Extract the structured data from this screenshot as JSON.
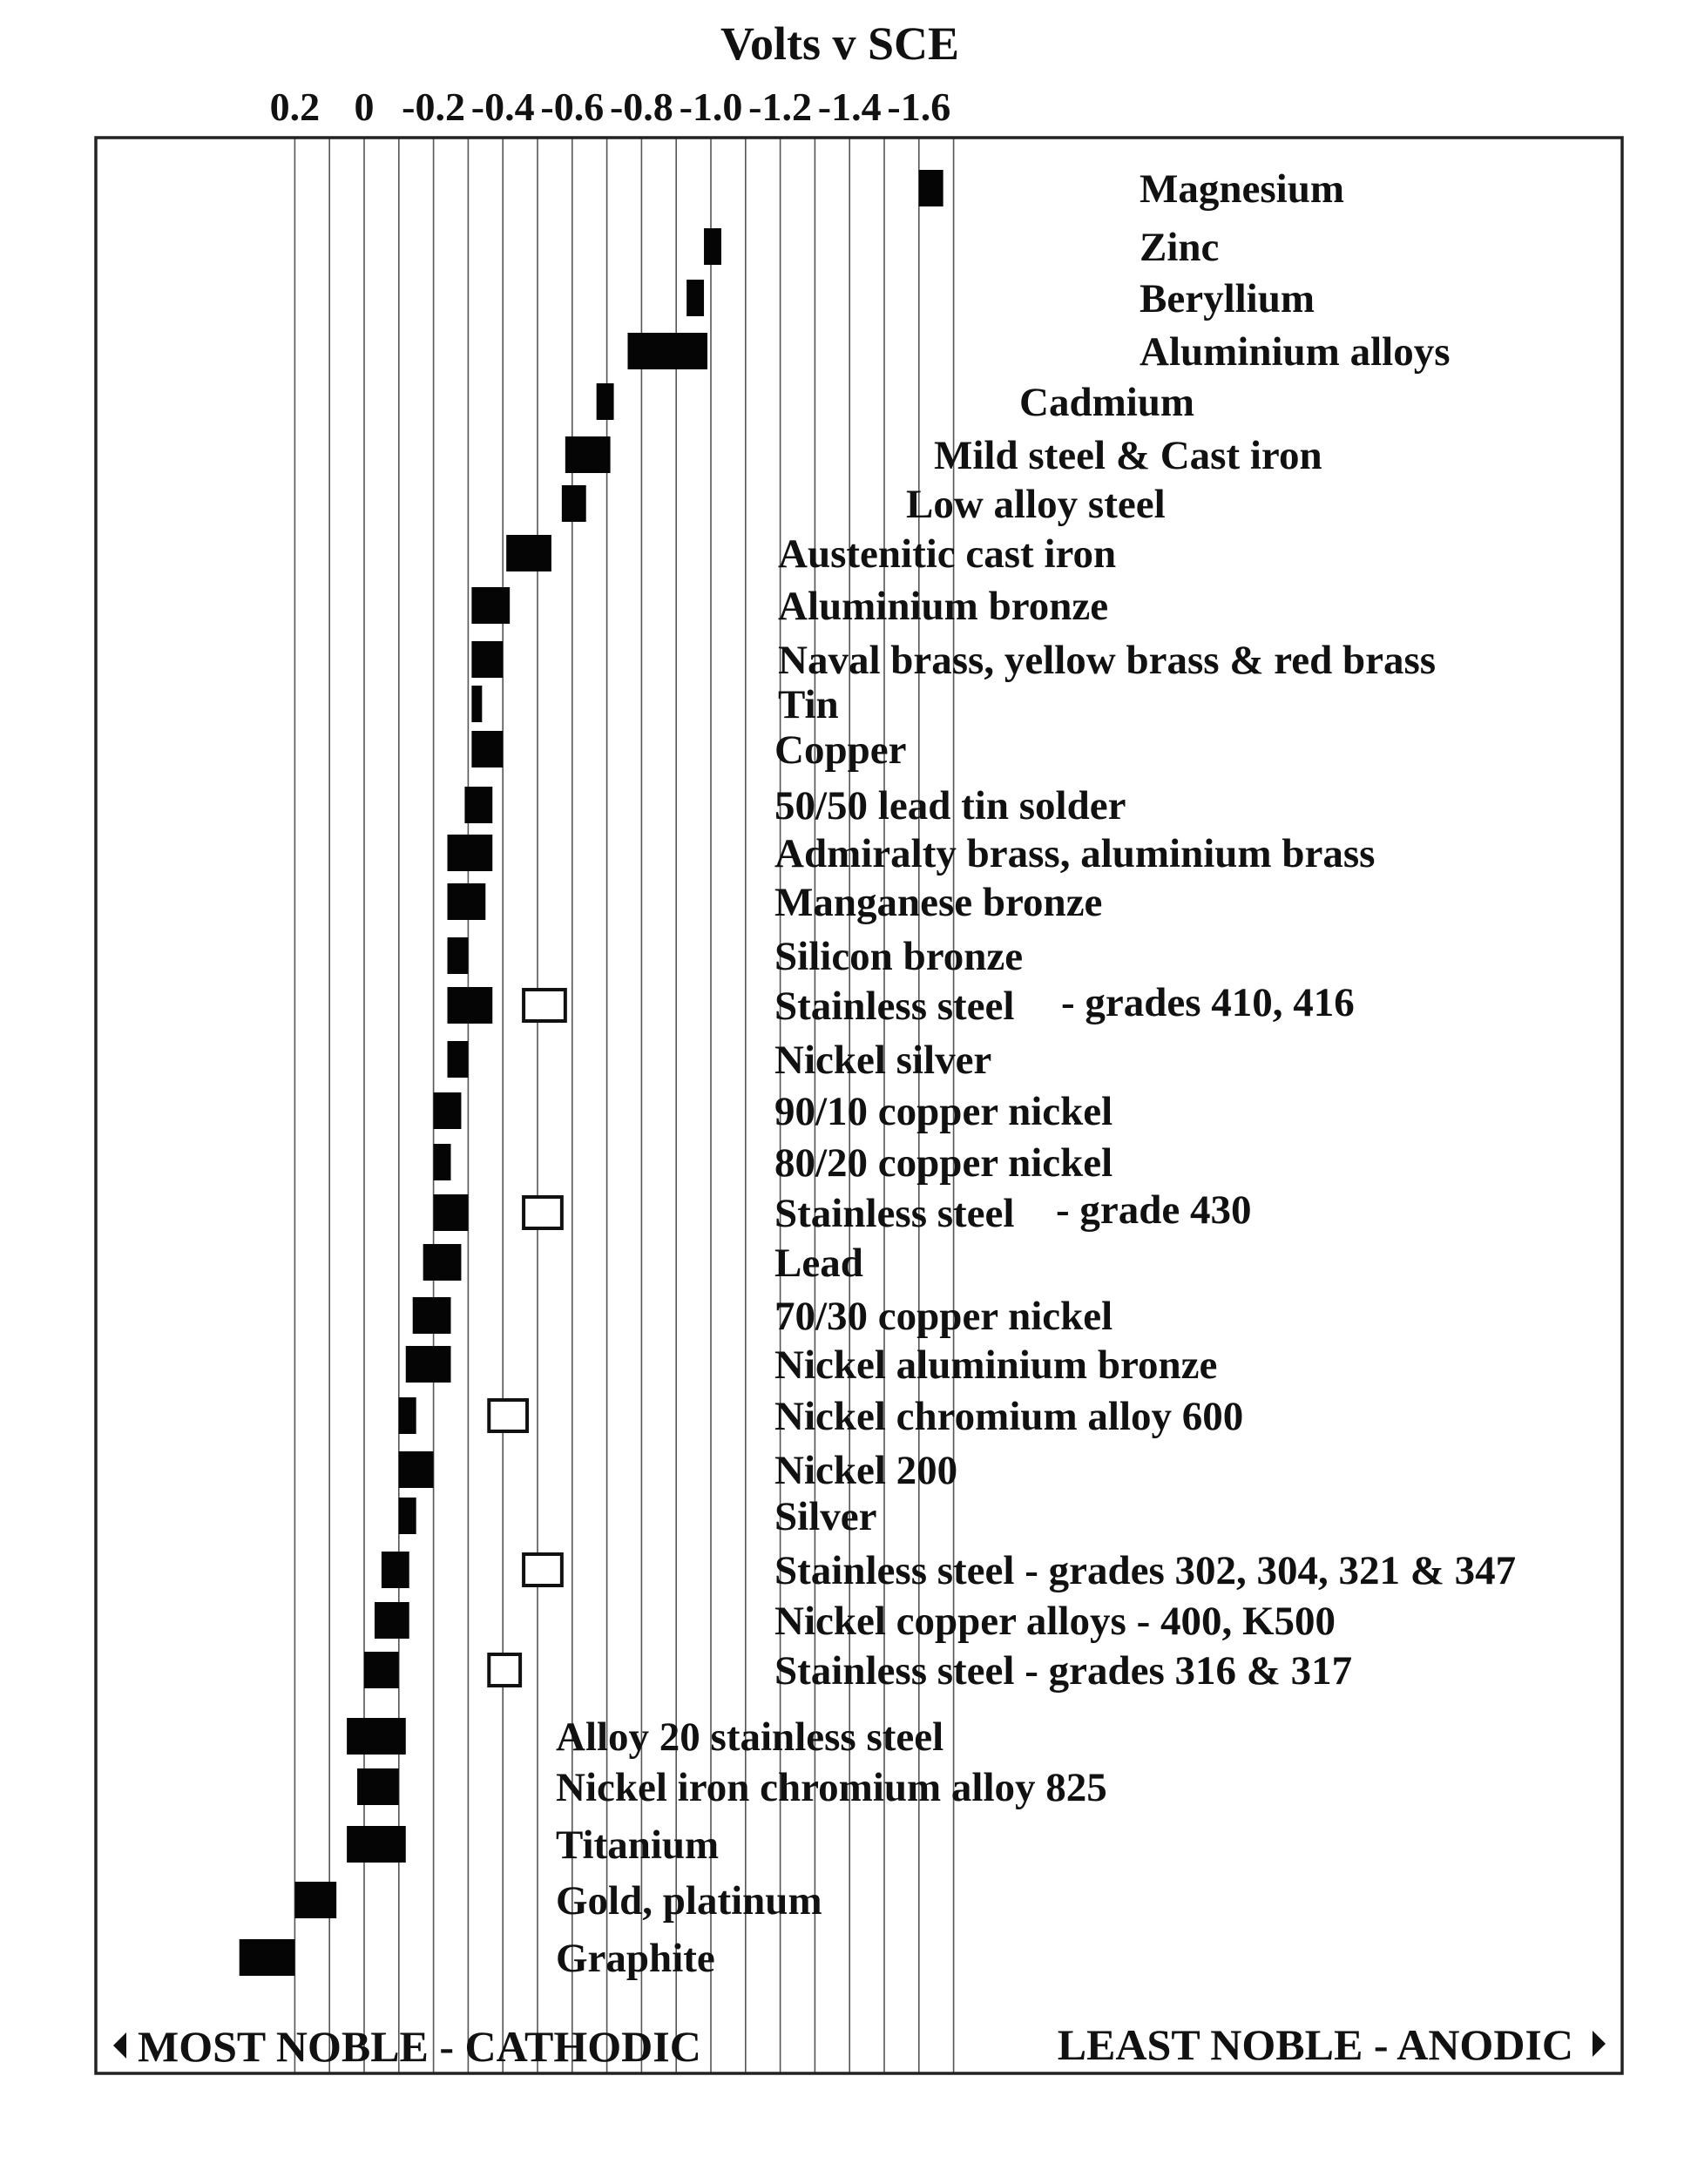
{
  "chart_data": {
    "type": "bar",
    "title": "Volts v SCE",
    "x_ticks": [
      0.2,
      0,
      -0.2,
      -0.4,
      -0.6,
      -0.8,
      -1.0,
      -1.2,
      -1.4,
      -1.6
    ],
    "x_tick_labels": [
      "0.2",
      "0",
      "-0.2",
      "-0.4",
      "-0.6",
      "-0.8",
      "-1.0",
      "-1.2",
      "-1.4",
      "-1.6"
    ],
    "xlim": [
      0.35,
      -1.8
    ],
    "grid": true,
    "left_note": "MOST NOBLE - CATHODIC",
    "right_note": "LEAST NOBLE - ANODIC",
    "series": [
      {
        "label": "Magnesium",
        "solid": [
          -1.6,
          -1.67
        ]
      },
      {
        "label": "Zinc",
        "solid": [
          -0.98,
          -1.03
        ]
      },
      {
        "label": "Beryllium",
        "solid": [
          -0.93,
          -0.98
        ]
      },
      {
        "label": "Aluminium alloys",
        "solid": [
          -0.76,
          -0.99
        ]
      },
      {
        "label": "Cadmium",
        "solid": [
          -0.67,
          -0.72
        ]
      },
      {
        "label": "Mild steel & Cast iron",
        "solid": [
          -0.58,
          -0.71
        ]
      },
      {
        "label": "Low alloy steel",
        "solid": [
          -0.57,
          -0.64
        ]
      },
      {
        "label": "Austenitic cast iron",
        "solid": [
          -0.41,
          -0.54
        ]
      },
      {
        "label": "Aluminium bronze",
        "solid": [
          -0.31,
          -0.42
        ]
      },
      {
        "label": "Naval brass, yellow brass & red brass",
        "solid": [
          -0.31,
          -0.4
        ]
      },
      {
        "label": "Tin",
        "solid": [
          -0.31,
          -0.34
        ]
      },
      {
        "label": "Copper",
        "solid": [
          -0.31,
          -0.4
        ]
      },
      {
        "label": "50/50 lead tin solder",
        "solid": [
          -0.29,
          -0.37
        ]
      },
      {
        "label": "Admiralty brass, aluminium brass",
        "solid": [
          -0.24,
          -0.37
        ]
      },
      {
        "label": "Manganese bronze",
        "solid": [
          -0.24,
          -0.35
        ]
      },
      {
        "label": "Silicon bronze",
        "solid": [
          -0.24,
          -0.3
        ]
      },
      {
        "label": "Stainless steel",
        "suffix": "- grades 410, 416",
        "solid": [
          -0.24,
          -0.37
        ],
        "open": [
          -0.46,
          -0.58
        ]
      },
      {
        "label": "Nickel silver",
        "solid": [
          -0.24,
          -0.3
        ]
      },
      {
        "label": "90/10 copper nickel",
        "solid": [
          -0.2,
          -0.28
        ]
      },
      {
        "label": "80/20 copper nickel",
        "solid": [
          -0.2,
          -0.25
        ]
      },
      {
        "label": "Stainless steel",
        "suffix": "- grade 430",
        "solid": [
          -0.2,
          -0.3
        ],
        "open": [
          -0.46,
          -0.57
        ]
      },
      {
        "label": "Lead",
        "solid": [
          -0.17,
          -0.28
        ]
      },
      {
        "label": "70/30 copper nickel",
        "solid": [
          -0.14,
          -0.25
        ]
      },
      {
        "label": "Nickel aluminium bronze",
        "solid": [
          -0.12,
          -0.25
        ]
      },
      {
        "label": "Nickel chromium alloy 600",
        "solid": [
          -0.1,
          -0.15
        ],
        "open": [
          -0.36,
          -0.47
        ]
      },
      {
        "label": "Nickel 200",
        "solid": [
          -0.1,
          -0.2
        ]
      },
      {
        "label": "Silver",
        "solid": [
          -0.1,
          -0.15
        ]
      },
      {
        "label": "Stainless steel - grades 302, 304, 321 & 347",
        "solid": [
          -0.05,
          -0.13
        ],
        "open": [
          -0.46,
          -0.57
        ]
      },
      {
        "label": "Nickel copper  alloys - 400, K500",
        "solid": [
          -0.03,
          -0.13
        ]
      },
      {
        "label": "Stainless steel - grades  316 & 317",
        "solid": [
          0.0,
          -0.1
        ],
        "open": [
          -0.36,
          -0.45
        ]
      },
      {
        "label": "Alloy 20 stainless steel",
        "solid": [
          0.05,
          -0.12
        ]
      },
      {
        "label": "Nickel iron chromium alloy  825",
        "solid": [
          0.02,
          -0.1
        ]
      },
      {
        "label": "Titanium",
        "solid": [
          0.05,
          -0.12
        ]
      },
      {
        "label": "Gold, platinum",
        "solid": [
          0.2,
          0.08
        ]
      },
      {
        "label": "Graphite",
        "solid": [
          0.36,
          0.2
        ]
      }
    ]
  }
}
